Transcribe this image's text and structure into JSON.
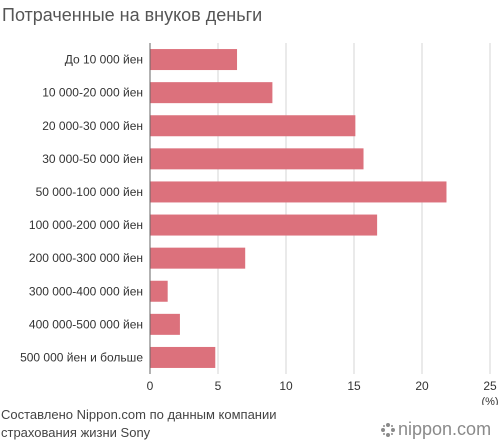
{
  "chart_data": {
    "type": "bar",
    "orientation": "horizontal",
    "title": "Потраченные на внуков деньги",
    "categories": [
      "До 10 000 йен",
      "10 000-20 000 йен",
      "20 000-30 000 йен",
      "30 000-50 000 йен",
      "50 000-100 000 йен",
      "100 000-200 000 йен",
      "200 000-300 000 йен",
      "300 000-400 000 йен",
      "400 000-500 000 йен",
      "500 000 йен и больше"
    ],
    "values": [
      6.4,
      9.0,
      15.1,
      15.7,
      21.8,
      16.7,
      7.0,
      1.3,
      2.2,
      4.8
    ],
    "xlim": [
      0,
      25
    ],
    "xticks": [
      "0",
      "5",
      "10",
      "15",
      "20",
      "25"
    ],
    "x_unit": "(%)",
    "grid": "vertical",
    "bar_color": "#dc717c",
    "grid_color": "#d6d6d6",
    "axis_color": "#666666"
  },
  "footer": {
    "source_line1": "Составлено Nippon.com по данным компании",
    "source_line2": "страхования жизни Sony",
    "brand": "nippon.com"
  }
}
